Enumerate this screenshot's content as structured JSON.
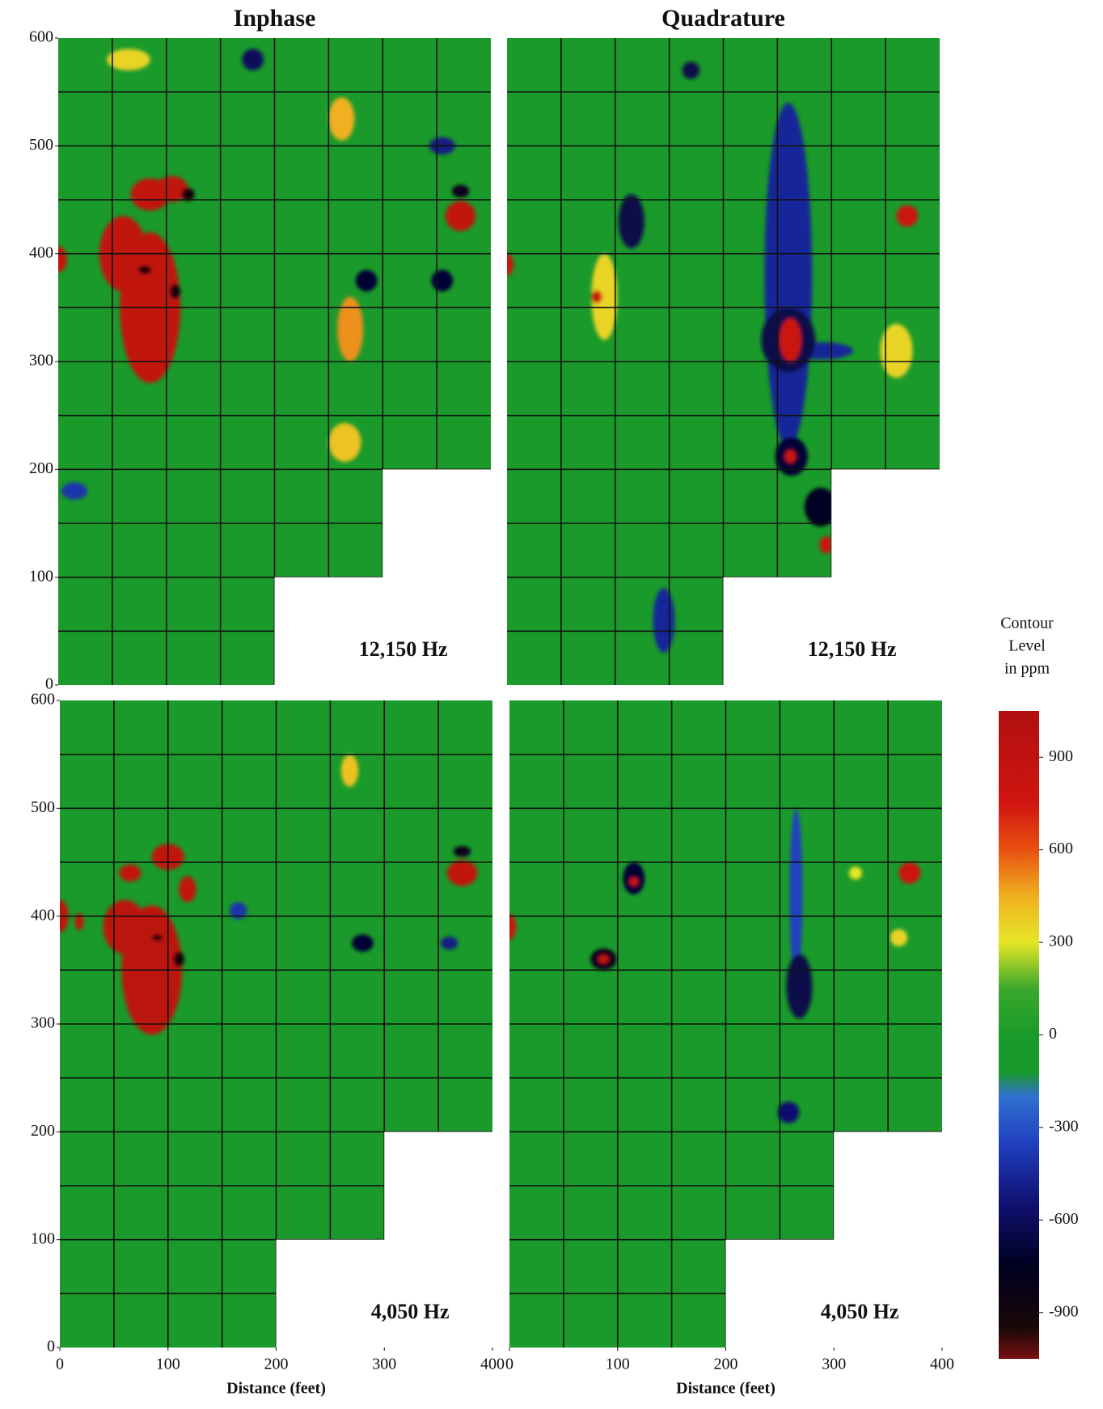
{
  "chart_data": [
    {
      "type": "contour",
      "title": "Inphase",
      "annotation": "12,150 Hz",
      "xlim": [
        0,
        400
      ],
      "ylim": [
        0,
        600
      ],
      "yticks": [
        0,
        100,
        200,
        300,
        400,
        500,
        600
      ],
      "xgrid": [
        50,
        100,
        150,
        200,
        250,
        300,
        350
      ],
      "ygrid": [
        50,
        100,
        150,
        200,
        250,
        300,
        350,
        400,
        450,
        500,
        550
      ],
      "no_data": {
        "x": [
          200,
          400,
          400,
          300,
          300,
          200
        ],
        "y": [
          0,
          0,
          200,
          200,
          100,
          100
        ]
      },
      "anomalies": [
        {
          "x": 65,
          "y": 580,
          "rx": 20,
          "ry": 10,
          "value": 350
        },
        {
          "x": 262,
          "y": 525,
          "rx": 12,
          "ry": 20,
          "value": 450
        },
        {
          "x": 270,
          "y": 330,
          "rx": 12,
          "ry": 30,
          "value": 500
        },
        {
          "x": 265,
          "y": 225,
          "rx": 15,
          "ry": 18,
          "value": 400
        },
        {
          "x": 180,
          "y": 580,
          "rx": 10,
          "ry": 10,
          "value": -600
        },
        {
          "x": 355,
          "y": 500,
          "rx": 12,
          "ry": 8,
          "value": -500
        },
        {
          "x": 15,
          "y": 180,
          "rx": 12,
          "ry": 8,
          "value": -400
        },
        {
          "x": 85,
          "y": 350,
          "rx": 28,
          "ry": 70,
          "value": 900
        },
        {
          "x": 60,
          "y": 400,
          "rx": 22,
          "ry": 35,
          "value": 900
        },
        {
          "x": 85,
          "y": 455,
          "rx": 18,
          "ry": 15,
          "value": 900
        },
        {
          "x": 105,
          "y": 460,
          "rx": 15,
          "ry": 12,
          "value": 900
        },
        {
          "x": 120,
          "y": 455,
          "rx": 6,
          "ry": 6,
          "value": -900
        },
        {
          "x": 0,
          "y": 395,
          "rx": 8,
          "ry": 12,
          "value": 900
        },
        {
          "x": 80,
          "y": 385,
          "rx": 6,
          "ry": 4,
          "value": -900
        },
        {
          "x": 108,
          "y": 365,
          "rx": 5,
          "ry": 7,
          "value": -900
        },
        {
          "x": 285,
          "y": 375,
          "rx": 10,
          "ry": 10,
          "value": -700
        },
        {
          "x": 355,
          "y": 375,
          "rx": 10,
          "ry": 10,
          "value": -700
        },
        {
          "x": 372,
          "y": 458,
          "rx": 8,
          "ry": 6,
          "value": -800
        },
        {
          "x": 372,
          "y": 435,
          "rx": 14,
          "ry": 14,
          "value": 900
        }
      ]
    },
    {
      "type": "contour",
      "title": "Quadrature",
      "annotation": "12,150 Hz",
      "xlim": [
        0,
        400
      ],
      "ylim": [
        0,
        600
      ],
      "xgrid": [
        50,
        100,
        150,
        200,
        250,
        300,
        350
      ],
      "ygrid": [
        50,
        100,
        150,
        200,
        250,
        300,
        350,
        400,
        450,
        500,
        550
      ],
      "no_data": {
        "x": [
          200,
          400,
          400,
          300,
          300,
          200
        ],
        "y": [
          0,
          0,
          200,
          200,
          100,
          100
        ]
      },
      "anomalies": [
        {
          "x": 90,
          "y": 360,
          "rx": 12,
          "ry": 40,
          "value": 350
        },
        {
          "x": 360,
          "y": 310,
          "rx": 15,
          "ry": 25,
          "value": 350
        },
        {
          "x": 260,
          "y": 380,
          "rx": 22,
          "ry": 160,
          "value": -450
        },
        {
          "x": 290,
          "y": 310,
          "rx": 30,
          "ry": 8,
          "value": -450
        },
        {
          "x": 260,
          "y": 320,
          "rx": 25,
          "ry": 30,
          "value": -650
        },
        {
          "x": 262,
          "y": 320,
          "rx": 10,
          "ry": 20,
          "value": 800
        },
        {
          "x": 263,
          "y": 212,
          "rx": 15,
          "ry": 18,
          "value": -700
        },
        {
          "x": 262,
          "y": 212,
          "rx": 5,
          "ry": 6,
          "value": 800
        },
        {
          "x": 290,
          "y": 165,
          "rx": 15,
          "ry": 18,
          "value": -750
        },
        {
          "x": 295,
          "y": 130,
          "rx": 6,
          "ry": 8,
          "value": 800
        },
        {
          "x": 115,
          "y": 430,
          "rx": 12,
          "ry": 25,
          "value": -650
        },
        {
          "x": 370,
          "y": 435,
          "rx": 10,
          "ry": 10,
          "value": 800
        },
        {
          "x": 83,
          "y": 360,
          "rx": 5,
          "ry": 6,
          "value": 800
        },
        {
          "x": 145,
          "y": 60,
          "rx": 10,
          "ry": 30,
          "value": -450
        },
        {
          "x": 170,
          "y": 570,
          "rx": 8,
          "ry": 8,
          "value": -650
        },
        {
          "x": 0,
          "y": 390,
          "rx": 6,
          "ry": 10,
          "value": 800
        }
      ]
    },
    {
      "type": "contour",
      "annotation": "4,050 Hz",
      "xlabel": "Distance (feet)",
      "xlim": [
        0,
        400
      ],
      "ylim": [
        0,
        600
      ],
      "xticks": [
        0,
        100,
        200,
        300,
        400
      ],
      "yticks": [
        0,
        100,
        200,
        300,
        400,
        500,
        600
      ],
      "xgrid": [
        50,
        100,
        150,
        200,
        250,
        300,
        350
      ],
      "ygrid": [
        50,
        100,
        150,
        200,
        250,
        300,
        350,
        400,
        450,
        500,
        550
      ],
      "no_data": {
        "x": [
          200,
          400,
          400,
          300,
          300,
          200
        ],
        "y": [
          0,
          0,
          200,
          200,
          100,
          100
        ]
      },
      "anomalies": [
        {
          "x": 268,
          "y": 535,
          "rx": 8,
          "ry": 15,
          "value": 400
        },
        {
          "x": 165,
          "y": 405,
          "rx": 8,
          "ry": 8,
          "value": -400
        },
        {
          "x": 85,
          "y": 350,
          "rx": 28,
          "ry": 60,
          "value": 950
        },
        {
          "x": 60,
          "y": 390,
          "rx": 20,
          "ry": 25,
          "value": 950
        },
        {
          "x": 65,
          "y": 440,
          "rx": 10,
          "ry": 8,
          "value": 900
        },
        {
          "x": 100,
          "y": 455,
          "rx": 15,
          "ry": 12,
          "value": 900
        },
        {
          "x": 118,
          "y": 425,
          "rx": 8,
          "ry": 12,
          "value": 900
        },
        {
          "x": 0,
          "y": 400,
          "rx": 8,
          "ry": 15,
          "value": 950
        },
        {
          "x": 18,
          "y": 395,
          "rx": 4,
          "ry": 8,
          "value": 900
        },
        {
          "x": 90,
          "y": 380,
          "rx": 5,
          "ry": 3,
          "value": -900
        },
        {
          "x": 110,
          "y": 360,
          "rx": 5,
          "ry": 7,
          "value": -900
        },
        {
          "x": 280,
          "y": 375,
          "rx": 10,
          "ry": 8,
          "value": -700
        },
        {
          "x": 360,
          "y": 375,
          "rx": 8,
          "ry": 6,
          "value": -500
        },
        {
          "x": 372,
          "y": 460,
          "rx": 8,
          "ry": 5,
          "value": -800
        },
        {
          "x": 372,
          "y": 440,
          "rx": 14,
          "ry": 12,
          "value": 900
        }
      ]
    },
    {
      "type": "contour",
      "annotation": "4,050 Hz",
      "xlabel": "Distance (feet)",
      "xlim": [
        0,
        400
      ],
      "ylim": [
        0,
        600
      ],
      "xticks": [
        0,
        100,
        200,
        300,
        400
      ],
      "xgrid": [
        50,
        100,
        150,
        200,
        250,
        300,
        350
      ],
      "ygrid": [
        50,
        100,
        150,
        200,
        250,
        300,
        350,
        400,
        450,
        500,
        550
      ],
      "no_data": {
        "x": [
          200,
          400,
          400,
          300,
          300,
          200
        ],
        "y": [
          0,
          0,
          200,
          200,
          100,
          100
        ]
      },
      "anomalies": [
        {
          "x": 360,
          "y": 380,
          "rx": 8,
          "ry": 8,
          "value": 350
        },
        {
          "x": 320,
          "y": 440,
          "rx": 6,
          "ry": 6,
          "value": 300
        },
        {
          "x": 265,
          "y": 420,
          "rx": 6,
          "ry": 80,
          "value": -350
        },
        {
          "x": 268,
          "y": 335,
          "rx": 12,
          "ry": 30,
          "value": -650
        },
        {
          "x": 258,
          "y": 218,
          "rx": 10,
          "ry": 10,
          "value": -550
        },
        {
          "x": 115,
          "y": 435,
          "rx": 10,
          "ry": 15,
          "value": -700
        },
        {
          "x": 115,
          "y": 432,
          "rx": 4,
          "ry": 4,
          "value": 800
        },
        {
          "x": 87,
          "y": 360,
          "rx": 12,
          "ry": 10,
          "value": -800
        },
        {
          "x": 87,
          "y": 360,
          "rx": 5,
          "ry": 4,
          "value": 900
        },
        {
          "x": 370,
          "y": 440,
          "rx": 10,
          "ry": 10,
          "value": 800
        },
        {
          "x": 0,
          "y": 390,
          "rx": 6,
          "ry": 12,
          "value": 800
        }
      ]
    }
  ],
  "colorbar": {
    "title": [
      "Contour",
      "Level",
      "in ppm"
    ],
    "lim": [
      -1050,
      1050
    ],
    "ticks": [
      900,
      600,
      300,
      0,
      -300,
      -600,
      -900
    ],
    "background_value": 0,
    "colorscale": [
      {
        "value": -1050,
        "color": "#7a1010"
      },
      {
        "value": -950,
        "color": "#1a0808"
      },
      {
        "value": -750,
        "color": "#000020"
      },
      {
        "value": -550,
        "color": "#101070"
      },
      {
        "value": -350,
        "color": "#2040c0"
      },
      {
        "value": -200,
        "color": "#3070d0"
      },
      {
        "value": -120,
        "color": "#1a9a2a"
      },
      {
        "value": 0,
        "color": "#1a9a2a"
      },
      {
        "value": 150,
        "color": "#3aa82a"
      },
      {
        "value": 300,
        "color": "#e6e628"
      },
      {
        "value": 450,
        "color": "#f0b020"
      },
      {
        "value": 600,
        "color": "#e85010"
      },
      {
        "value": 750,
        "color": "#d01510"
      },
      {
        "value": 1050,
        "color": "#b01010"
      }
    ]
  }
}
